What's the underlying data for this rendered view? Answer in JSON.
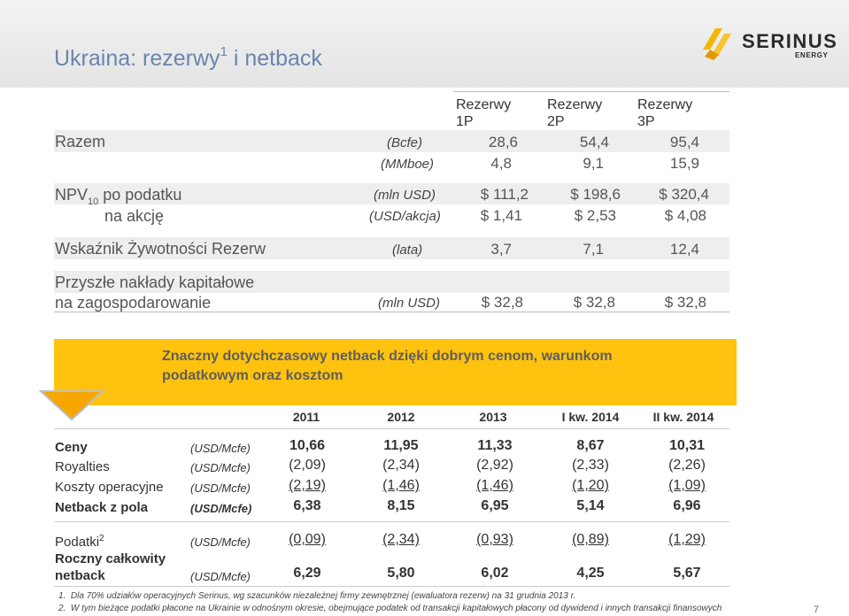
{
  "title": {
    "text": "Ukraina: rezerwy",
    "sup": "1",
    "rest": " i netback"
  },
  "logo": {
    "name": "SERINUS",
    "sub": "ENERGY"
  },
  "reserves": {
    "headers": [
      {
        "line1": "Rezerwy",
        "line2": "1P"
      },
      {
        "line1": "Rezerwy",
        "line2": "2P"
      },
      {
        "line1": "Rezerwy",
        "line2": "3P"
      }
    ],
    "rows": [
      {
        "label": "Razem",
        "unit": "(Bcfe)",
        "values": [
          "28,6",
          "54,4",
          "95,4"
        ]
      },
      {
        "label": "",
        "unit": "(MMboe)",
        "values": [
          "4,8",
          "9,1",
          "15,9"
        ]
      },
      {
        "label_main": "NPV",
        "label_sub": "10",
        "label_rest": " po podatku",
        "unit": "(mln USD)",
        "values": [
          "$ 111,2",
          "$ 198,6",
          "$ 320,4"
        ]
      },
      {
        "label": "na akcję",
        "unit": "(USD/akcja)",
        "values": [
          "$ 1,41",
          "$ 2,53",
          "$ 4,08"
        ]
      },
      {
        "label": "Wskaźnik Żywotności Rezerw",
        "unit": "(lata)",
        "values": [
          "3,7",
          "7,1",
          "12,4"
        ]
      },
      {
        "label": "Przyszłe nakłady kapitałowe",
        "unit": "",
        "values": []
      },
      {
        "label": "na zagospodarowanie",
        "unit": "(mln USD)",
        "values": [
          "$ 32,8",
          "$ 32,8",
          "$ 32,8"
        ]
      }
    ]
  },
  "banner": {
    "text": "Znaczny dotychczasowy netback dzięki dobrym cenom, warunkom podatkowym oraz kosztom"
  },
  "netback": {
    "headers": [
      "2011",
      "2012",
      "2013",
      "I kw. 2014",
      "II kw. 2014"
    ],
    "rows": [
      {
        "label": "Ceny",
        "unit": "(USD/Mcfe)",
        "values": [
          "10,66",
          "11,95",
          "11,33",
          "8,67",
          "10,31"
        ]
      },
      {
        "label": "Royalties",
        "unit": "(USD/Mcfe)",
        "values": [
          "(2,09)",
          "(2,34)",
          "(2,92)",
          "(2,33)",
          "(2,26)"
        ]
      },
      {
        "label": "Koszty operacyjne",
        "unit": "(USD/Mcfe)",
        "values": [
          "(2,19)",
          "(1,46)",
          "(1,46)",
          "(1,20)",
          "(1,09)"
        ]
      },
      {
        "label": "Netback z pola",
        "unit": "(USD/Mcfe)",
        "values": [
          "6,38",
          "8,15",
          "6,95",
          "5,14",
          "6,96"
        ]
      },
      {
        "label": "Podatki",
        "label_sup": "2",
        "unit": "(USD/Mcfe)",
        "values": [
          "(0,09)",
          "(2,34)",
          "(0,93)",
          "(0,89)",
          "(1,29)"
        ]
      },
      {
        "label_line1": "Roczny całkowity",
        "label_line2": "netback",
        "unit": "(USD/Mcfe)",
        "values": [
          "6,29",
          "5,80",
          "6,02",
          "4,25",
          "5,67"
        ]
      }
    ]
  },
  "footnotes": [
    {
      "num": "1.",
      "text": "Dla 70% udziałów operacyjnych Serinus, wg szacunków niezależnej firmy zewnętrznej (ewaluatora rezerw) na 31 grudnia 2013 r."
    },
    {
      "num": "2.",
      "text": "W tym bieżące podatki płacone na Ukrainie w odnośnym okresie, obejmujące podatek od transakcji kapitałowych płacony od dywidend i innych transakcji finansowych"
    }
  ],
  "page_number": "7",
  "colors": {
    "title": "#6b85ad",
    "banner": "#ffc20e",
    "logo_accent": "#f2b705"
  },
  "icons": {
    "logo": "serinus-flame-logo",
    "arrow": "down-arrow-icon"
  }
}
